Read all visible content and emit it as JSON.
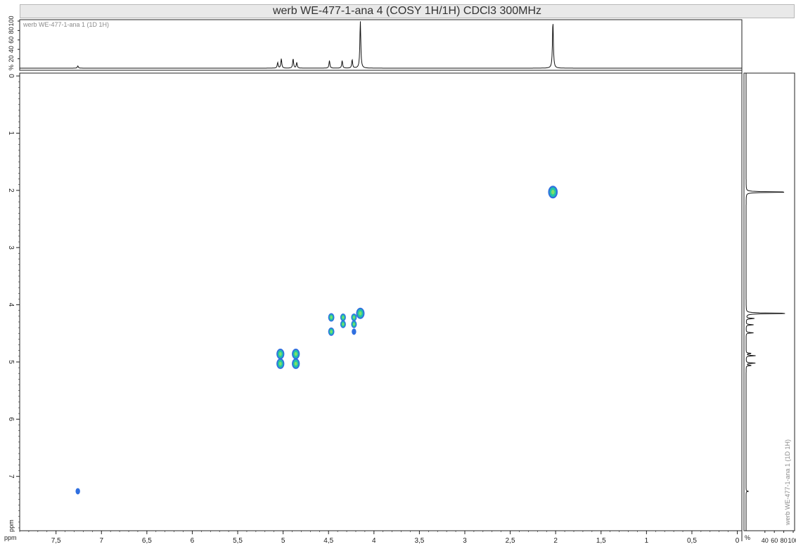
{
  "title": "werb WE-477-1-ana 4 (COSY 1H/1H) CDCl3 300MHz",
  "top_trace_label": "werb WE-477-1-ana 1 (1D 1H)",
  "right_trace_label": "werb WE-477-1-ana 1 (1D 1H)",
  "percent_symbol": "%",
  "axis_unit": "ppm",
  "colors": {
    "contour_outer": "#2f6fe0",
    "contour_inner": "#22c4a6",
    "contour_core": "#7ee06a",
    "trace": "#111111",
    "frame": "#222222"
  },
  "chart_data": {
    "type": "heatmap",
    "title": "werb WE-477-1-ana 4 (COSY 1H/1H) CDCl3 300MHz",
    "xlabel": "ppm",
    "ylabel": "ppm",
    "xlim": [
      7.9,
      -0.05
    ],
    "ylim": [
      -0.05,
      7.95
    ],
    "x_ticks": [
      "7,5",
      "7",
      "6,5",
      "6",
      "5,5",
      "5",
      "4,5",
      "4",
      "3,5",
      "3",
      "2,5",
      "2",
      "1,5",
      "1",
      "0,5",
      "0"
    ],
    "y_ticks": [
      "0",
      "1",
      "2",
      "3",
      "4",
      "5",
      "6",
      "7"
    ],
    "top_percent_ticks": [
      "20",
      "40",
      "60",
      "80",
      "100"
    ],
    "right_percent_ticks": [
      "40",
      "60",
      "80",
      "100"
    ],
    "cross_peaks": [
      {
        "x": 7.26,
        "y": 7.26,
        "size": 0.3
      },
      {
        "x": 2.03,
        "y": 2.03,
        "size": 1.2
      },
      {
        "x": 4.15,
        "y": 4.15,
        "size": 1.0
      },
      {
        "x": 4.47,
        "y": 4.22,
        "size": 0.6
      },
      {
        "x": 4.47,
        "y": 4.47,
        "size": 0.6
      },
      {
        "x": 4.34,
        "y": 4.22,
        "size": 0.5
      },
      {
        "x": 4.34,
        "y": 4.34,
        "size": 0.5
      },
      {
        "x": 4.22,
        "y": 4.22,
        "size": 0.5
      },
      {
        "x": 4.22,
        "y": 4.34,
        "size": 0.5
      },
      {
        "x": 4.22,
        "y": 4.47,
        "size": 0.3
      },
      {
        "x": 5.03,
        "y": 4.86,
        "size": 0.9
      },
      {
        "x": 5.03,
        "y": 5.03,
        "size": 0.9
      },
      {
        "x": 4.86,
        "y": 4.86,
        "size": 0.9
      },
      {
        "x": 4.86,
        "y": 5.03,
        "size": 0.9
      }
    ],
    "projection_1d": [
      {
        "ppm": 7.26,
        "intensity": 5
      },
      {
        "ppm": 5.06,
        "intensity": 12
      },
      {
        "ppm": 5.02,
        "intensity": 20
      },
      {
        "ppm": 4.89,
        "intensity": 20
      },
      {
        "ppm": 4.85,
        "intensity": 12
      },
      {
        "ppm": 4.49,
        "intensity": 16
      },
      {
        "ppm": 4.35,
        "intensity": 16
      },
      {
        "ppm": 4.24,
        "intensity": 18
      },
      {
        "ppm": 4.15,
        "intensity": 100
      },
      {
        "ppm": 2.03,
        "intensity": 100
      }
    ]
  }
}
